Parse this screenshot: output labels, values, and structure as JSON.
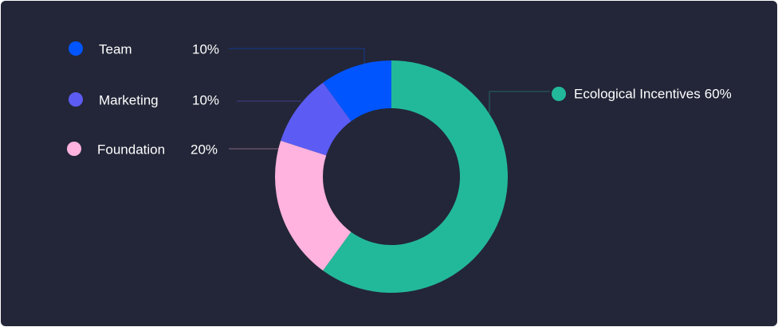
{
  "chart_data": {
    "type": "donut",
    "categories": [
      "Team",
      "Marketing",
      "Foundation",
      "Ecological Incentives"
    ],
    "values": [
      10,
      10,
      20,
      60
    ],
    "value_labels": [
      "10%",
      "10%",
      "20%",
      "60%"
    ],
    "colors": [
      "#0055ff",
      "#5c5cf4",
      "#ffb3de",
      "#22b99a"
    ]
  }
}
